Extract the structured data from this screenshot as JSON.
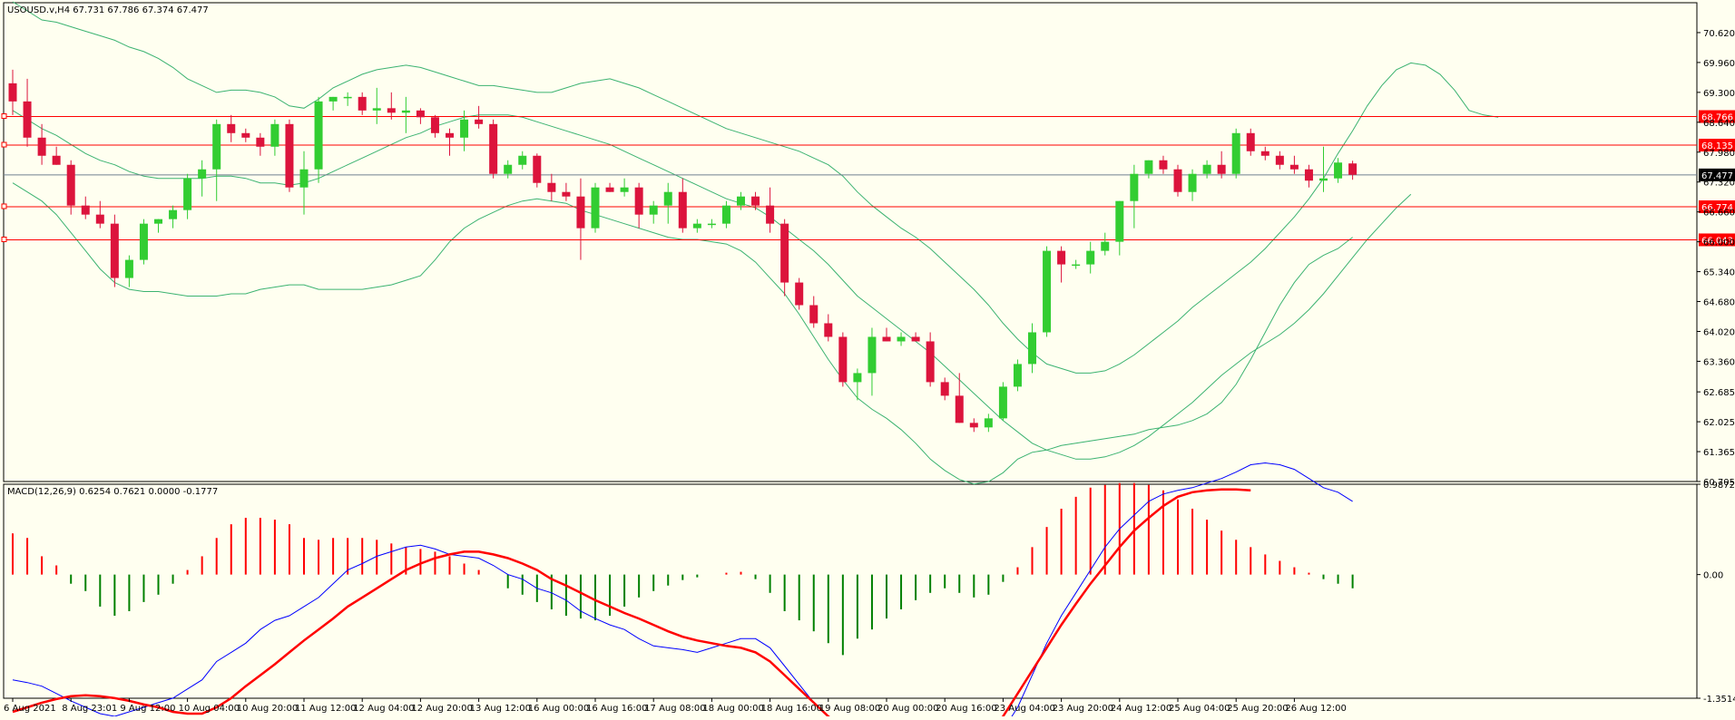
{
  "chart_data": [
    {
      "type": "candlestick",
      "header": "USOUSD.v,H4  67.731 67.786 67.374 67.477",
      "ylim": [
        60.705,
        71.28
      ],
      "y_ticks": [
        "70.620",
        "69.960",
        "69.300",
        "68.640",
        "67.980",
        "67.320",
        "66.660",
        "66.000",
        "65.340",
        "64.680",
        "64.020",
        "63.360",
        "62.685",
        "62.025",
        "61.365",
        "60.705"
      ],
      "x_labels": [
        "6 Aug 2021",
        "8 Aug 23:01",
        "9 Aug 12:00",
        "10 Aug 04:00",
        "10 Aug 20:00",
        "11 Aug 12:00",
        "12 Aug 04:00",
        "12 Aug 20:00",
        "13 Aug 12:00",
        "16 Aug 00:00",
        "16 Aug 16:00",
        "17 Aug 08:00",
        "18 Aug 00:00",
        "18 Aug 16:00",
        "19 Aug 08:00",
        "20 Aug 00:00",
        "20 Aug 16:00",
        "23 Aug 04:00",
        "23 Aug 20:00",
        "24 Aug 12:00",
        "25 Aug 04:00",
        "25 Aug 20:00",
        "26 Aug 12:00"
      ],
      "label_every": 4,
      "horizontal_levels": [
        {
          "value": 68.766,
          "label": "68.766",
          "color": "#ff0000"
        },
        {
          "value": 68.135,
          "label": "68.135",
          "color": "#ff0000"
        },
        {
          "value": 66.774,
          "label": "66.774",
          "color": "#ff0000"
        },
        {
          "value": 66.043,
          "label": "66.043",
          "color": "#ff0000"
        }
      ],
      "current_price": {
        "value": 67.477,
        "label": "67.477"
      },
      "colors": {
        "bull": "#32cd32",
        "bear": "#dc143c",
        "bands": "#3cb371",
        "grid_line": "#ff0000",
        "background": "#fffff0"
      },
      "candles": [
        [
          69.5,
          69.8,
          68.8,
          69.1
        ],
        [
          69.1,
          69.6,
          68.1,
          68.3
        ],
        [
          68.3,
          68.6,
          67.7,
          67.9
        ],
        [
          67.9,
          68.1,
          67.7,
          67.7
        ],
        [
          67.7,
          67.8,
          66.6,
          66.8
        ],
        [
          66.8,
          67.0,
          66.5,
          66.6
        ],
        [
          66.6,
          66.9,
          66.3,
          66.4
        ],
        [
          66.4,
          66.6,
          65.0,
          65.2
        ],
        [
          65.2,
          65.7,
          65.0,
          65.6
        ],
        [
          65.6,
          66.5,
          65.5,
          66.4
        ],
        [
          66.4,
          66.5,
          66.2,
          66.5
        ],
        [
          66.5,
          66.8,
          66.3,
          66.7
        ],
        [
          66.7,
          67.5,
          66.5,
          67.4
        ],
        [
          67.4,
          67.8,
          67.0,
          67.6
        ],
        [
          67.6,
          68.7,
          66.9,
          68.6
        ],
        [
          68.6,
          68.8,
          68.2,
          68.4
        ],
        [
          68.4,
          68.5,
          68.2,
          68.3
        ],
        [
          68.3,
          68.4,
          67.9,
          68.1
        ],
        [
          68.1,
          68.7,
          67.9,
          68.6
        ],
        [
          68.6,
          68.7,
          67.1,
          67.2
        ],
        [
          67.2,
          68.0,
          66.6,
          67.6
        ],
        [
          67.6,
          69.2,
          67.3,
          69.1
        ],
        [
          69.1,
          69.2,
          68.9,
          69.2
        ],
        [
          69.2,
          69.3,
          69.0,
          69.2
        ],
        [
          69.2,
          69.3,
          68.8,
          68.9
        ],
        [
          68.9,
          69.4,
          68.6,
          68.95
        ],
        [
          68.95,
          69.3,
          68.7,
          68.85
        ],
        [
          68.85,
          69.2,
          68.4,
          68.9
        ],
        [
          68.9,
          68.95,
          68.6,
          68.75
        ],
        [
          68.75,
          68.8,
          68.3,
          68.4
        ],
        [
          68.4,
          68.5,
          67.9,
          68.3
        ],
        [
          68.3,
          68.9,
          68.0,
          68.7
        ],
        [
          68.7,
          69.0,
          68.5,
          68.6
        ],
        [
          68.6,
          68.7,
          67.4,
          67.5
        ],
        [
          67.5,
          67.8,
          67.4,
          67.7
        ],
        [
          67.7,
          68.0,
          67.6,
          67.9
        ],
        [
          67.9,
          67.95,
          67.2,
          67.3
        ],
        [
          67.3,
          67.5,
          66.9,
          67.1
        ],
        [
          67.1,
          67.3,
          66.9,
          67.0
        ],
        [
          67.0,
          67.4,
          65.6,
          66.3
        ],
        [
          66.3,
          67.3,
          66.2,
          67.2
        ],
        [
          67.2,
          67.3,
          67.1,
          67.1
        ],
        [
          67.1,
          67.4,
          67.0,
          67.2
        ],
        [
          67.2,
          67.3,
          66.3,
          66.6
        ],
        [
          66.6,
          66.9,
          66.4,
          66.8
        ],
        [
          66.8,
          67.3,
          66.4,
          67.1
        ],
        [
          67.1,
          67.4,
          66.2,
          66.3
        ],
        [
          66.3,
          66.5,
          66.2,
          66.4
        ],
        [
          66.4,
          66.5,
          66.3,
          66.4
        ],
        [
          66.4,
          66.9,
          66.3,
          66.8
        ],
        [
          66.8,
          67.1,
          66.7,
          67.0
        ],
        [
          67.0,
          67.1,
          66.7,
          66.8
        ],
        [
          66.8,
          67.2,
          66.2,
          66.4
        ],
        [
          66.4,
          66.5,
          64.8,
          65.1
        ],
        [
          65.1,
          65.2,
          64.5,
          64.6
        ],
        [
          64.6,
          64.8,
          64.1,
          64.2
        ],
        [
          64.2,
          64.4,
          63.8,
          63.9
        ],
        [
          63.9,
          64.0,
          62.8,
          62.9
        ],
        [
          62.9,
          63.2,
          62.5,
          63.1
        ],
        [
          63.1,
          64.1,
          62.6,
          63.9
        ],
        [
          63.9,
          64.1,
          63.8,
          63.8
        ],
        [
          63.8,
          64.0,
          63.7,
          63.9
        ],
        [
          63.9,
          64.0,
          63.8,
          63.8
        ],
        [
          63.8,
          64.0,
          62.8,
          62.9
        ],
        [
          62.9,
          63.0,
          62.5,
          62.6
        ],
        [
          62.6,
          63.1,
          62.0,
          62.0
        ],
        [
          62.0,
          62.1,
          61.8,
          61.9
        ],
        [
          61.9,
          62.2,
          61.8,
          62.1
        ],
        [
          62.1,
          62.9,
          62.05,
          62.8
        ],
        [
          62.8,
          63.4,
          62.7,
          63.3
        ],
        [
          63.3,
          64.2,
          63.1,
          64.0
        ],
        [
          64.0,
          65.9,
          63.9,
          65.8
        ],
        [
          65.8,
          65.9,
          65.1,
          65.5
        ],
        [
          65.5,
          65.6,
          65.4,
          65.5
        ],
        [
          65.5,
          66.0,
          65.3,
          65.8
        ],
        [
          65.8,
          66.2,
          65.7,
          66.0
        ],
        [
          66.0,
          66.9,
          65.7,
          66.9
        ],
        [
          66.9,
          67.7,
          66.3,
          67.5
        ],
        [
          67.5,
          67.8,
          67.4,
          67.8
        ],
        [
          67.8,
          67.9,
          67.5,
          67.6
        ],
        [
          67.6,
          67.7,
          67.0,
          67.1
        ],
        [
          67.1,
          67.6,
          66.9,
          67.5
        ],
        [
          67.5,
          67.8,
          67.4,
          67.7
        ],
        [
          67.7,
          68.0,
          67.4,
          67.5
        ],
        [
          67.5,
          68.5,
          67.4,
          68.4
        ],
        [
          68.4,
          68.5,
          67.9,
          68.0
        ],
        [
          68.0,
          68.1,
          67.8,
          67.9
        ],
        [
          67.9,
          68.0,
          67.6,
          67.7
        ],
        [
          67.7,
          67.9,
          67.5,
          67.6
        ],
        [
          67.6,
          67.7,
          67.2,
          67.35
        ],
        [
          67.35,
          68.1,
          67.1,
          67.4
        ],
        [
          67.4,
          67.85,
          67.3,
          67.75
        ],
        [
          67.73,
          67.79,
          67.37,
          67.48
        ]
      ],
      "bb_upper": [
        71.3,
        71.1,
        70.9,
        70.85,
        70.75,
        70.65,
        70.55,
        70.45,
        70.3,
        70.2,
        70.05,
        69.85,
        69.6,
        69.45,
        69.3,
        69.35,
        69.35,
        69.3,
        69.2,
        69.0,
        68.95,
        69.15,
        69.4,
        69.55,
        69.7,
        69.8,
        69.85,
        69.9,
        69.85,
        69.75,
        69.65,
        69.55,
        69.45,
        69.45,
        69.4,
        69.35,
        69.3,
        69.3,
        69.4,
        69.5,
        69.55,
        69.6,
        69.5,
        69.4,
        69.25,
        69.1,
        68.95,
        68.8,
        68.65,
        68.5,
        68.4,
        68.3,
        68.2,
        68.1,
        68.0,
        67.85,
        67.7,
        67.45,
        67.1,
        66.8,
        66.55,
        66.3,
        66.1,
        65.85,
        65.55,
        65.25,
        64.95,
        64.6,
        64.2,
        63.85,
        63.55,
        63.3,
        63.2,
        63.1,
        63.1,
        63.15,
        63.3,
        63.5,
        63.75,
        64.0,
        64.25,
        64.55,
        64.8,
        65.05,
        65.3,
        65.55,
        65.85,
        66.2,
        66.55,
        66.95,
        67.4,
        67.95,
        68.45,
        69.0,
        69.45,
        69.8,
        69.95,
        69.9,
        69.7,
        69.35,
        68.9,
        68.8,
        68.75
      ],
      "bb_middle": [
        68.9,
        68.7,
        68.5,
        68.35,
        68.15,
        67.95,
        67.8,
        67.7,
        67.55,
        67.45,
        67.4,
        67.4,
        67.4,
        67.4,
        67.45,
        67.45,
        67.4,
        67.3,
        67.3,
        67.25,
        67.3,
        67.4,
        67.55,
        67.7,
        67.85,
        68.0,
        68.15,
        68.3,
        68.4,
        68.55,
        68.65,
        68.75,
        68.8,
        68.8,
        68.8,
        68.75,
        68.65,
        68.55,
        68.45,
        68.35,
        68.25,
        68.15,
        68.0,
        67.85,
        67.7,
        67.55,
        67.4,
        67.25,
        67.1,
        66.95,
        66.85,
        66.75,
        66.55,
        66.3,
        66.05,
        65.8,
        65.5,
        65.15,
        64.8,
        64.55,
        64.3,
        64.05,
        63.8,
        63.55,
        63.25,
        62.95,
        62.65,
        62.35,
        62.05,
        61.8,
        61.55,
        61.4,
        61.3,
        61.2,
        61.2,
        61.25,
        61.35,
        61.5,
        61.7,
        61.95,
        62.2,
        62.45,
        62.75,
        63.05,
        63.3,
        63.55,
        63.75,
        63.95,
        64.2,
        64.5,
        64.85,
        65.25,
        65.65,
        66.05,
        66.4,
        66.75,
        67.05
      ],
      "bb_lower": [
        67.3,
        67.1,
        66.9,
        66.6,
        66.2,
        65.8,
        65.4,
        65.1,
        64.95,
        64.9,
        64.9,
        64.85,
        64.8,
        64.8,
        64.8,
        64.85,
        64.85,
        64.95,
        65.0,
        65.05,
        65.05,
        64.95,
        64.95,
        64.95,
        64.95,
        65.0,
        65.05,
        65.15,
        65.25,
        65.6,
        66.0,
        66.3,
        66.5,
        66.65,
        66.8,
        66.9,
        66.95,
        66.9,
        66.85,
        66.7,
        66.6,
        66.5,
        66.4,
        66.3,
        66.2,
        66.1,
        66.05,
        66.05,
        66.0,
        65.95,
        65.8,
        65.55,
        65.2,
        64.85,
        64.4,
        63.9,
        63.4,
        62.95,
        62.55,
        62.3,
        62.1,
        61.85,
        61.55,
        61.2,
        60.95,
        60.75,
        60.65,
        60.7,
        60.9,
        61.2,
        61.35,
        61.4,
        61.5,
        61.55,
        61.6,
        61.65,
        61.7,
        61.75,
        61.85,
        61.9,
        61.95,
        62.05,
        62.2,
        62.45,
        62.85,
        63.4,
        64.0,
        64.6,
        65.1,
        65.5,
        65.7,
        65.85,
        66.1
      ]
    },
    {
      "type": "macd",
      "header": "MACD(12,26,9) 0.6254 0.7621 0.0000 -0.1777",
      "ylim": [
        -1.3514,
        0.9872
      ],
      "y_ticks": [
        "0.9872",
        "0.00",
        "-1.3514"
      ],
      "colors": {
        "histogram_up": "#ff0000",
        "histogram_down": "#008000",
        "macd_line": "#0000ff",
        "signal_line": "#ff0000"
      },
      "histogram": [
        0.45,
        0.4,
        0.2,
        0.1,
        -0.1,
        -0.18,
        -0.35,
        -0.45,
        -0.4,
        -0.3,
        -0.22,
        -0.1,
        0.05,
        0.2,
        0.4,
        0.55,
        0.62,
        0.62,
        0.6,
        0.55,
        0.4,
        0.38,
        0.4,
        0.4,
        0.4,
        0.38,
        0.34,
        0.3,
        0.28,
        0.25,
        0.2,
        0.12,
        0.05,
        0.0,
        -0.15,
        -0.22,
        -0.3,
        -0.38,
        -0.45,
        -0.48,
        -0.5,
        -0.45,
        -0.35,
        -0.25,
        -0.18,
        -0.12,
        -0.06,
        -0.03,
        0.0,
        0.02,
        0.03,
        -0.05,
        -0.2,
        -0.4,
        -0.5,
        -0.62,
        -0.75,
        -0.88,
        -0.7,
        -0.6,
        -0.48,
        -0.38,
        -0.28,
        -0.2,
        -0.15,
        -0.2,
        -0.25,
        -0.22,
        -0.08,
        0.08,
        0.3,
        0.52,
        0.72,
        0.85,
        0.95,
        0.98,
        1.0,
        1.0,
        0.98,
        0.92,
        0.82,
        0.72,
        0.6,
        0.48,
        0.38,
        0.3,
        0.22,
        0.15,
        0.08,
        0.02,
        -0.05,
        -0.1,
        -0.15
      ],
      "macd_line": [
        -1.15,
        -1.18,
        -1.22,
        -1.3,
        -1.38,
        -1.45,
        -1.52,
        -1.55,
        -1.5,
        -1.45,
        -1.4,
        -1.35,
        -1.25,
        -1.15,
        -0.95,
        -0.85,
        -0.75,
        -0.6,
        -0.5,
        -0.45,
        -0.35,
        -0.25,
        -0.1,
        0.05,
        0.12,
        0.2,
        0.25,
        0.3,
        0.32,
        0.28,
        0.22,
        0.2,
        0.18,
        0.1,
        0.0,
        -0.05,
        -0.15,
        -0.2,
        -0.28,
        -0.4,
        -0.48,
        -0.55,
        -0.6,
        -0.7,
        -0.78,
        -0.8,
        -0.82,
        -0.85,
        -0.8,
        -0.75,
        -0.7,
        -0.7,
        -0.8,
        -1.0,
        -1.2,
        -1.4,
        -1.55,
        -1.7,
        -1.85,
        -1.85,
        -1.85,
        -1.8,
        -1.75,
        -1.78,
        -1.85,
        -1.88,
        -1.9,
        -1.85,
        -1.7,
        -1.45,
        -1.1,
        -0.75,
        -0.45,
        -0.2,
        0.05,
        0.3,
        0.5,
        0.65,
        0.8,
        0.88,
        0.92,
        0.95,
        1.0,
        1.05,
        1.12,
        1.2,
        1.22,
        1.2,
        1.15,
        1.05,
        0.95,
        0.9,
        0.8
      ],
      "signal_line": [
        -1.5,
        -1.45,
        -1.4,
        -1.36,
        -1.33,
        -1.32,
        -1.33,
        -1.35,
        -1.38,
        -1.42,
        -1.45,
        -1.5,
        -1.52,
        -1.52,
        -1.45,
        -1.35,
        -1.22,
        -1.1,
        -0.98,
        -0.85,
        -0.72,
        -0.6,
        -0.48,
        -0.35,
        -0.25,
        -0.15,
        -0.05,
        0.05,
        0.12,
        0.18,
        0.22,
        0.25,
        0.25,
        0.22,
        0.18,
        0.12,
        0.05,
        -0.05,
        -0.12,
        -0.2,
        -0.28,
        -0.35,
        -0.42,
        -0.48,
        -0.55,
        -0.62,
        -0.68,
        -0.72,
        -0.75,
        -0.78,
        -0.8,
        -0.85,
        -0.95,
        -1.1,
        -1.25,
        -1.4,
        -1.55,
        -1.68,
        -1.8,
        -1.88,
        -1.93,
        -1.95,
        -1.96,
        -1.96,
        -1.95,
        -1.92,
        -1.86,
        -1.74,
        -1.55,
        -1.3,
        -1.05,
        -0.8,
        -0.55,
        -0.32,
        -0.1,
        0.1,
        0.3,
        0.48,
        0.62,
        0.75,
        0.85,
        0.9,
        0.92,
        0.93,
        0.93,
        0.92
      ]
    }
  ]
}
